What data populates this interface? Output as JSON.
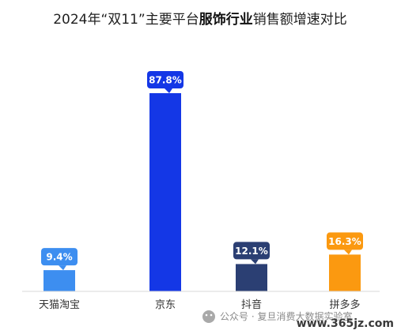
{
  "chart_data": {
    "type": "bar",
    "title_parts": [
      {
        "text": "2024年“双11”主要平台",
        "bold": false
      },
      {
        "text": "服饰行业",
        "bold": true
      },
      {
        "text": "销售额增速对比",
        "bold": false
      }
    ],
    "categories": [
      "天猫淘宝",
      "京东",
      "抖音",
      "拼多多"
    ],
    "values": [
      9.4,
      87.8,
      12.1,
      16.3
    ],
    "value_labels": [
      "9.4%",
      "87.8%",
      "12.1%",
      "16.3%"
    ],
    "colors": [
      "#3d8ef0",
      "#1437e6",
      "#2b3f73",
      "#fb9910"
    ],
    "ylim": [
      0,
      100
    ],
    "grid": false,
    "legend": "none"
  },
  "watermark": {
    "text": "公众号 · 复旦消费大数据实验室",
    "site": "www.365jz.com"
  }
}
